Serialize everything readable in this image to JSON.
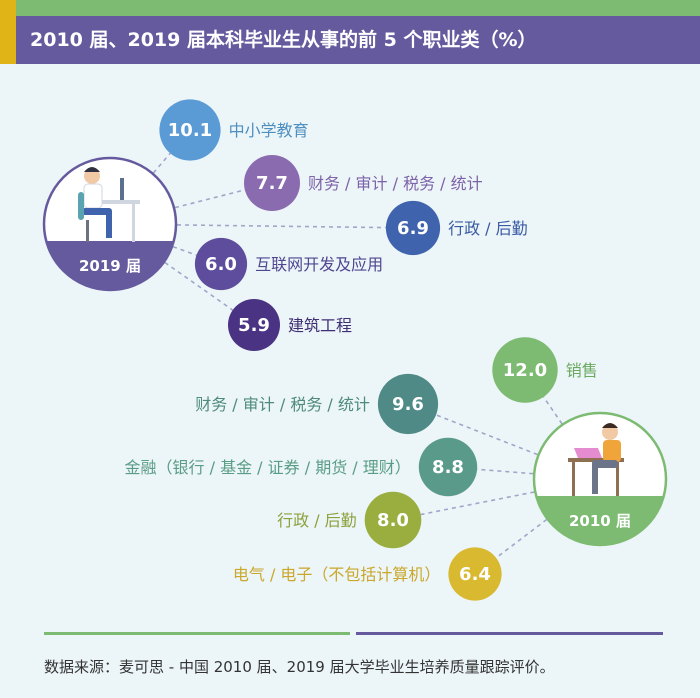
{
  "header": {
    "title": "2010 届、2019 届本科毕业生从事的前 5 个职业类（%）"
  },
  "chart_data": [
    {
      "type": "bubble",
      "hub_label": "2019 届",
      "series_color": "#655a9e",
      "items": [
        {
          "label": "中小学教育",
          "value": 10.1,
          "color": "#5b9bd5",
          "text_color": "#4f8fc0"
        },
        {
          "label": "财务 / 审计 / 税务 / 统计",
          "value": 7.7,
          "color": "#8a6bb0",
          "text_color": "#7d63a8"
        },
        {
          "label": "行政 / 后勤",
          "value": 6.9,
          "color": "#3f63ad",
          "text_color": "#3a5aa5"
        },
        {
          "label": "互联网开发及应用",
          "value": 6.0,
          "color": "#5d4d9c",
          "text_color": "#514690"
        },
        {
          "label": "建筑工程",
          "value": 5.9,
          "color": "#4a3382",
          "text_color": "#3e2e74"
        }
      ]
    },
    {
      "type": "bubble",
      "hub_label": "2010 届",
      "series_color": "#7cbb71",
      "items": [
        {
          "label": "销售",
          "value": 12.0,
          "color": "#7cbb71",
          "text_color": "#6aa95f"
        },
        {
          "label": "财务 / 审计 / 税务 / 统计",
          "value": 9.6,
          "color": "#4f8a86",
          "text_color": "#4e8b7c"
        },
        {
          "label": "金融（银行 / 基金 / 证券 / 期货 / 理财）",
          "value": 8.8,
          "color": "#5a9a8a",
          "text_color": "#5a9d85"
        },
        {
          "label": "行政 / 后勤",
          "value": 8.0,
          "color": "#9aae3f",
          "text_color": "#8da13c"
        },
        {
          "label": "电气 / 电子（不包括计算机）",
          "value": 6.4,
          "color": "#d8b92f",
          "text_color": "#caa82c"
        }
      ]
    }
  ],
  "footer": {
    "source": "数据来源：麦可思 - 中国 2010 届、2019 届大学毕业生培养质量跟踪评价。"
  }
}
